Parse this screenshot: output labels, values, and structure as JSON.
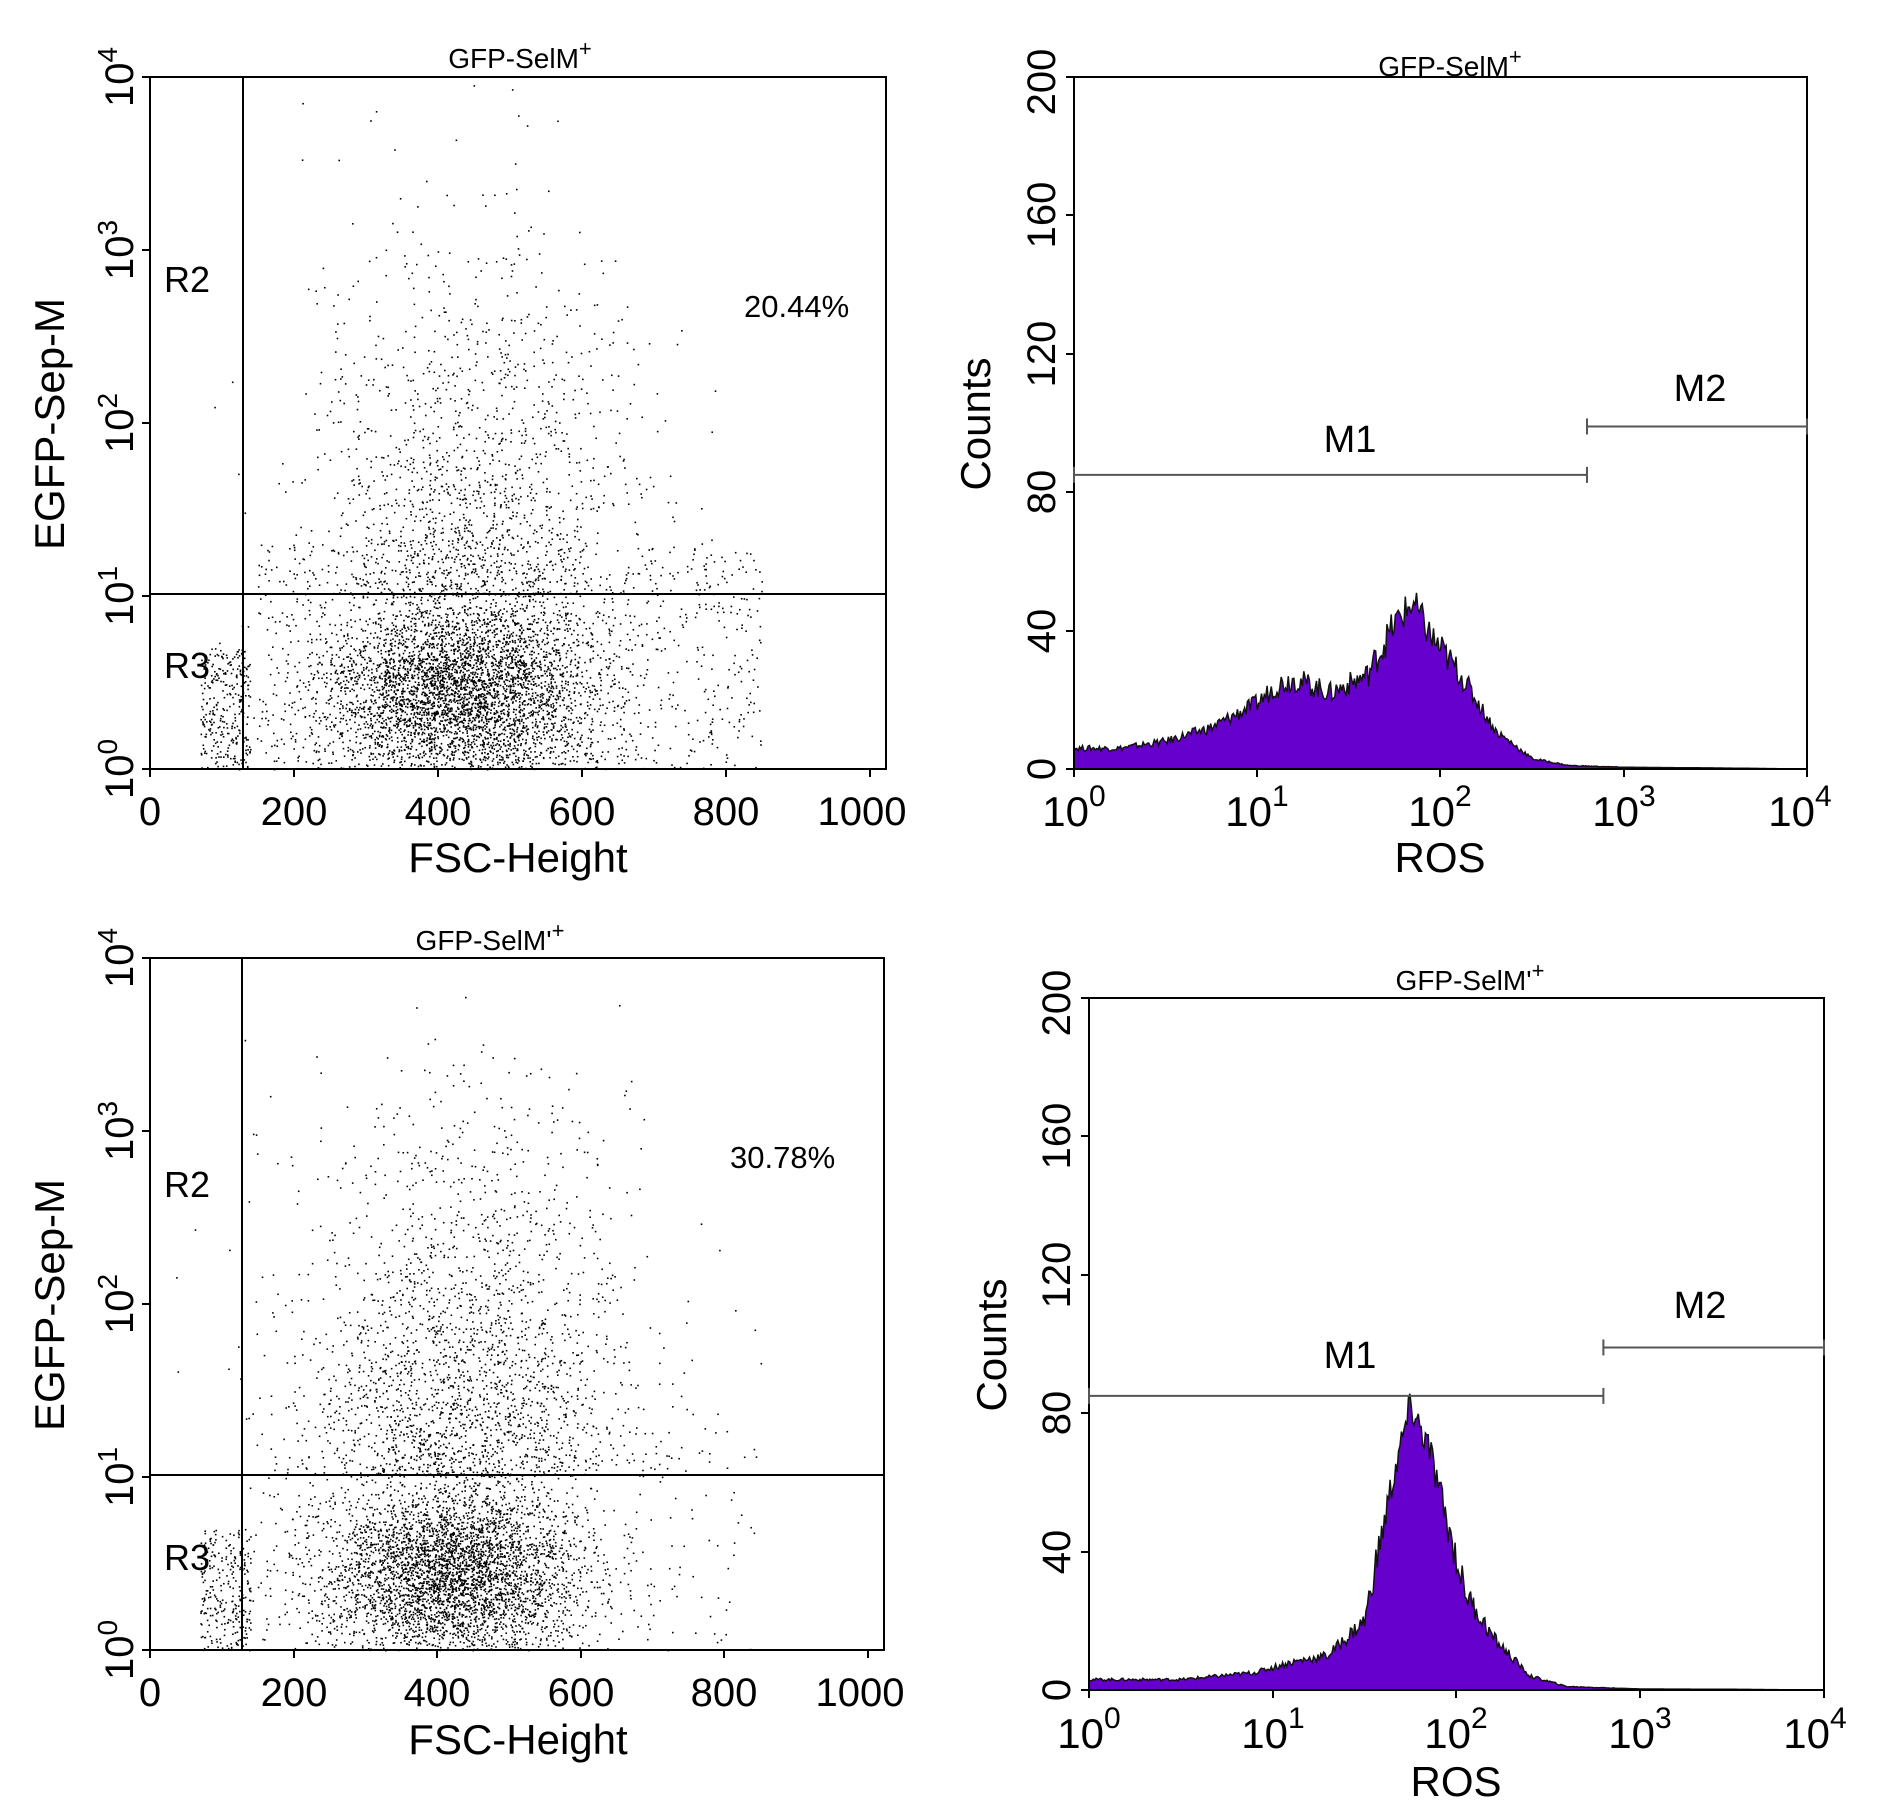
{
  "figure": {
    "panels": [
      {
        "title_main": "GFP-SelM",
        "title_sup": "+",
        "region_labels": [
          "R2",
          "R3"
        ],
        "percent_label": "20.44%"
      },
      {
        "title_main": "GFP-SelM",
        "title_sup": "+",
        "marker_labels": [
          "M1",
          "M2"
        ]
      },
      {
        "title_main": "GFP-SelM'",
        "title_sup": "+",
        "region_labels": [
          "R2",
          "R3"
        ],
        "percent_label": "30.78%"
      },
      {
        "title_main": "GFP-SelM'",
        "title_sup": "+",
        "marker_labels": [
          "M1",
          "M2"
        ]
      }
    ]
  },
  "colors": {
    "histogram_fill": "#6600cc",
    "dots": "#000000",
    "axes": "#000000",
    "markers": "#555555"
  },
  "chart_data": [
    {
      "type": "scatter",
      "title": "GFP-SelM+",
      "xlabel": "FSC-Height",
      "ylabel": "EGFP-Sep-M",
      "xlim": [
        0,
        1023
      ],
      "ylim_log10": [
        0,
        4
      ],
      "x_ticks": [
        "0",
        "200",
        "400",
        "600",
        "800",
        "1000"
      ],
      "y_ticks": [
        {
          "base": "10",
          "exp": "0"
        },
        {
          "base": "10",
          "exp": "1"
        },
        {
          "base": "10",
          "exp": "2"
        },
        {
          "base": "10",
          "exp": "3"
        },
        {
          "base": "10",
          "exp": "4"
        }
      ],
      "gates": {
        "vertical_x": 125,
        "horizontal_y": 10
      },
      "regions": [
        {
          "name": "R2",
          "quadrant": "upper"
        },
        {
          "name": "R3",
          "quadrant": "lower"
        }
      ],
      "percent_positive": 20.44,
      "population": {
        "core_x_mean": 430,
        "core_log_y_mean": 0.45,
        "upper_fraction": 0.2044
      }
    },
    {
      "type": "area",
      "title": "GFP-SelM+",
      "xlabel": "ROS",
      "ylabel": "Counts",
      "xscale": "log",
      "xlim": [
        1,
        10000
      ],
      "ylim": [
        0,
        200
      ],
      "x_ticks": [
        {
          "base": "10",
          "exp": "0"
        },
        {
          "base": "10",
          "exp": "1"
        },
        {
          "base": "10",
          "exp": "2"
        },
        {
          "base": "10",
          "exp": "3"
        },
        {
          "base": "10",
          "exp": "4"
        }
      ],
      "y_ticks": [
        "0",
        "40",
        "80",
        "120",
        "160",
        "200"
      ],
      "x_log10": [
        0,
        0.25,
        0.5,
        0.75,
        1.0,
        1.1,
        1.2,
        1.4,
        1.6,
        1.75,
        1.85,
        1.95,
        2.1,
        2.3,
        2.5,
        2.7,
        3.0,
        3.5,
        4.0
      ],
      "counts": [
        6,
        6,
        8,
        12,
        19,
        24,
        26,
        22,
        27,
        42,
        48,
        38,
        28,
        11,
        3,
        1,
        0.5,
        0.3,
        0
      ],
      "markers": [
        {
          "name": "M1",
          "x_range": [
            1,
            630
          ],
          "y_level": 85
        },
        {
          "name": "M2",
          "x_range": [
            630,
            10000
          ],
          "y_level": 99
        }
      ]
    },
    {
      "type": "scatter",
      "title": "GFP-SelM'+",
      "xlabel": "FSC-Height",
      "ylabel": "EGFP-Sep-M",
      "xlim": [
        0,
        1023
      ],
      "ylim_log10": [
        0,
        4
      ],
      "x_ticks": [
        "0",
        "200",
        "400",
        "600",
        "800",
        "1000"
      ],
      "y_ticks": [
        {
          "base": "10",
          "exp": "0"
        },
        {
          "base": "10",
          "exp": "1"
        },
        {
          "base": "10",
          "exp": "2"
        },
        {
          "base": "10",
          "exp": "3"
        },
        {
          "base": "10",
          "exp": "4"
        }
      ],
      "gates": {
        "vertical_x": 125,
        "horizontal_y": 10
      },
      "regions": [
        {
          "name": "R2",
          "quadrant": "upper"
        },
        {
          "name": "R3",
          "quadrant": "lower"
        }
      ],
      "percent_positive": 30.78,
      "population": {
        "core_x_mean": 420,
        "core_log_y_mean": 0.45,
        "upper_fraction": 0.3078
      }
    },
    {
      "type": "area",
      "title": "GFP-SelM'+",
      "xlabel": "ROS",
      "ylabel": "Counts",
      "xscale": "log",
      "xlim": [
        1,
        10000
      ],
      "ylim": [
        0,
        200
      ],
      "x_ticks": [
        {
          "base": "10",
          "exp": "0"
        },
        {
          "base": "10",
          "exp": "1"
        },
        {
          "base": "10",
          "exp": "2"
        },
        {
          "base": "10",
          "exp": "3"
        },
        {
          "base": "10",
          "exp": "4"
        }
      ],
      "y_ticks": [
        "0",
        "40",
        "80",
        "120",
        "160",
        "200"
      ],
      "x_log10": [
        0,
        0.5,
        0.9,
        1.1,
        1.3,
        1.5,
        1.65,
        1.75,
        1.85,
        1.95,
        2.05,
        2.2,
        2.4,
        2.6,
        3.0,
        3.5,
        4.0
      ],
      "counts": [
        3,
        3,
        5,
        8,
        10,
        20,
        60,
        82,
        70,
        48,
        28,
        15,
        4,
        1,
        0.3,
        0.2,
        0
      ],
      "markers": [
        {
          "name": "M1",
          "x_range": [
            1,
            630
          ],
          "y_level": 85
        },
        {
          "name": "M2",
          "x_range": [
            630,
            10000
          ],
          "y_level": 99
        }
      ]
    }
  ]
}
